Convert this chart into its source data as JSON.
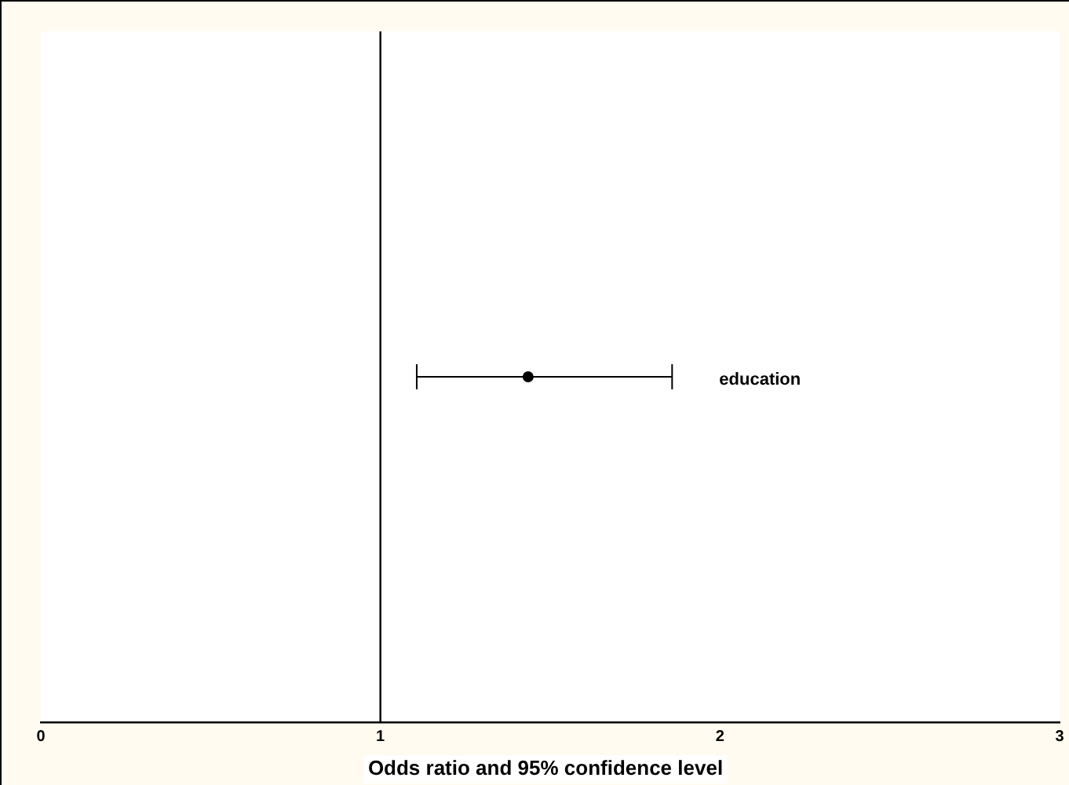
{
  "chart_data": {
    "type": "scatter",
    "orientation": "horizontal",
    "categories": [
      null
    ],
    "series": [
      {
        "name": "education",
        "color": "#000000",
        "values": [
          1.435
        ],
        "errors": [
          [
            1.107,
            1.859
          ]
        ]
      }
    ],
    "xlabel": "Odds ratio and 95% confidence level",
    "xlim": [
      0,
      3
    ],
    "xticks": [
      0,
      1,
      2,
      3
    ],
    "ref_lines": [
      {
        "axis": "x",
        "value": 1,
        "color": "#000000"
      }
    ],
    "marker": "circle",
    "grid": false,
    "legend": false,
    "tick_labels": "x"
  }
}
